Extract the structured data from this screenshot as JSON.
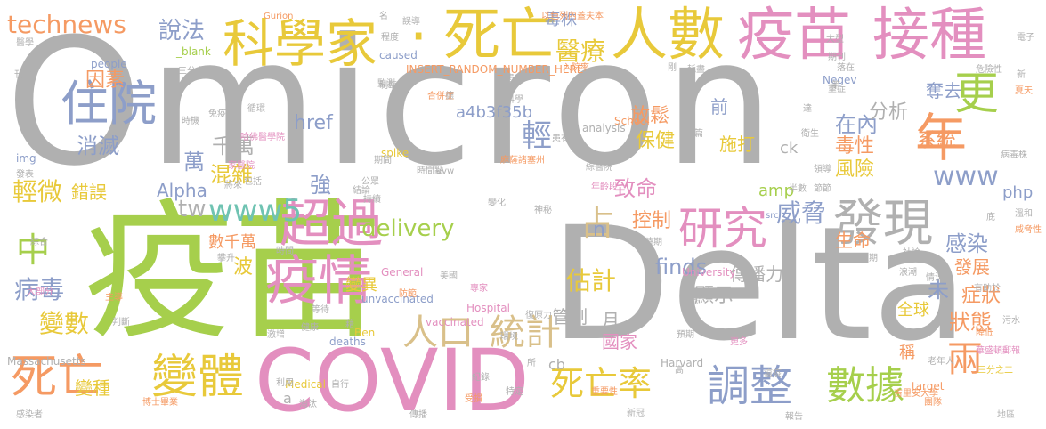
{
  "palette": {
    "gray": "#b0b0b0",
    "green": "#a6cf4c",
    "pink": "#e38fbf",
    "orange": "#f59a63",
    "blue": "#8d9ec9",
    "tan": "#d9c08a",
    "yellow": "#e8c93a",
    "teal": "#6fc3b2"
  },
  "words": [
    {
      "text": "Omicron",
      "color": "gray"
    },
    {
      "text": "疫苗",
      "color": "green"
    },
    {
      "text": "Delta",
      "color": "gray"
    },
    {
      "text": "COVID",
      "color": "pink"
    },
    {
      "text": "疫苗",
      "color": "pink"
    },
    {
      "text": "接種",
      "color": "pink"
    },
    {
      "text": "死亡",
      "color": "yellow"
    },
    {
      "text": "人數",
      "color": "yellow"
    },
    {
      "text": "科學家",
      "color": "yellow"
    },
    {
      "text": "·",
      "color": "yellow"
    },
    {
      "text": "疫情",
      "color": "pink"
    },
    {
      "text": "超過",
      "color": "pink"
    },
    {
      "text": "變體",
      "color": "yellow"
    },
    {
      "text": "死亡",
      "color": "orange"
    },
    {
      "text": "發現",
      "color": "gray"
    },
    {
      "text": "研究",
      "color": "pink"
    },
    {
      "text": "調整",
      "color": "blue"
    },
    {
      "text": "數據",
      "color": "green"
    },
    {
      "text": "死亡率",
      "color": "yellow"
    },
    {
      "text": "住院",
      "color": "blue"
    },
    {
      "text": "年",
      "color": "orange"
    },
    {
      "text": "更",
      "color": "green"
    },
    {
      "text": "technews",
      "color": "orange"
    },
    {
      "text": "www5",
      "color": "teal"
    },
    {
      "text": "人口",
      "color": "tan"
    },
    {
      "text": "統計",
      "color": "tan"
    },
    {
      "text": "占",
      "color": "tan"
    },
    {
      "text": "兩",
      "color": "orange"
    },
    {
      "text": "中",
      "color": "green"
    },
    {
      "text": "病毒",
      "color": "blue"
    },
    {
      "text": "變數",
      "color": "yellow"
    },
    {
      "text": "www",
      "color": "blue"
    },
    {
      "text": "威脅",
      "color": "blue"
    },
    {
      "text": "說法",
      "color": "blue"
    },
    {
      "text": "醫療",
      "color": "yellow"
    },
    {
      "text": "毒株",
      "color": "blue"
    },
    {
      "text": "輕",
      "color": "blue"
    },
    {
      "text": "因素",
      "color": "orange"
    },
    {
      "text": "消滅",
      "color": "blue"
    },
    {
      "text": "輕微",
      "color": "yellow"
    },
    {
      "text": "錯誤",
      "color": "yellow"
    },
    {
      "text": "千萬",
      "color": "gray"
    },
    {
      "text": "混雜",
      "color": "yellow"
    },
    {
      "text": "萬",
      "color": "blue"
    },
    {
      "text": "強",
      "color": "blue"
    },
    {
      "text": "a4b3f35b",
      "color": "blue"
    },
    {
      "text": "保健",
      "color": "yellow"
    },
    {
      "text": "致命",
      "color": "pink"
    },
    {
      "text": "放鬆",
      "color": "orange"
    },
    {
      "text": "施打",
      "color": "yellow"
    },
    {
      "text": "前",
      "color": "blue"
    },
    {
      "text": "在內",
      "color": "blue"
    },
    {
      "text": "毒性",
      "color": "orange"
    },
    {
      "text": "風險",
      "color": "yellow"
    },
    {
      "text": "分析",
      "color": "gray"
    },
    {
      "text": "系統",
      "color": "orange"
    },
    {
      "text": "奪去",
      "color": "blue"
    },
    {
      "text": "delivery",
      "color": "green"
    },
    {
      "text": "href",
      "color": "blue"
    },
    {
      "text": "tw",
      "color": "gray"
    },
    {
      "text": "Alpha",
      "color": "blue"
    },
    {
      "text": "估計",
      "color": "yellow"
    },
    {
      "text": "finds",
      "color": "blue"
    },
    {
      "text": "控制",
      "color": "orange"
    },
    {
      "text": "管制",
      "color": "gray"
    },
    {
      "text": "國家",
      "color": "pink"
    },
    {
      "text": "月",
      "color": "gray"
    },
    {
      "text": "n",
      "color": "blue"
    },
    {
      "text": "狀態",
      "color": "orange"
    },
    {
      "text": "未",
      "color": "blue"
    },
    {
      "text": "症狀",
      "color": "orange"
    },
    {
      "text": "生命",
      "color": "orange"
    },
    {
      "text": "發展",
      "color": "orange"
    },
    {
      "text": "顯示",
      "color": "gray"
    },
    {
      "text": "傳播力",
      "color": "gray"
    },
    {
      "text": "感染",
      "color": "blue"
    },
    {
      "text": "變種",
      "color": "yellow"
    },
    {
      "text": "變異",
      "color": "yellow"
    },
    {
      "text": "數千萬",
      "color": "orange"
    },
    {
      "text": "波",
      "color": "yellow"
    },
    {
      "text": "全球",
      "color": "yellow"
    },
    {
      "text": "稱",
      "color": "orange"
    },
    {
      "text": "ck",
      "color": "gray"
    },
    {
      "text": "cb",
      "color": "gray"
    },
    {
      "text": "amp",
      "color": "green"
    },
    {
      "text": "php",
      "color": "blue"
    },
    {
      "text": "sre",
      "color": "gray"
    },
    {
      "text": "deaths",
      "color": "blue"
    },
    {
      "text": "unvaccinated",
      "color": "blue"
    },
    {
      "text": "vaccinated",
      "color": "pink"
    },
    {
      "text": "Hospital",
      "color": "pink"
    },
    {
      "text": "Harvard",
      "color": "gray"
    },
    {
      "text": "Medical",
      "color": "yellow"
    },
    {
      "text": "Massachusetts",
      "color": "gray"
    },
    {
      "text": "General",
      "color": "pink"
    },
    {
      "text": "University",
      "color": "pink"
    },
    {
      "text": "School",
      "color": "orange"
    },
    {
      "text": "analysis",
      "color": "gray"
    },
    {
      "text": "spike",
      "color": "yellow"
    },
    {
      "text": "Gurion",
      "color": "orange"
    },
    {
      "text": "INSERT_RANDOM_NUMBER_HERE",
      "color": "orange"
    },
    {
      "text": "people",
      "color": "blue"
    },
    {
      "text": "_blank",
      "color": "green"
    },
    {
      "text": "caused",
      "color": "blue"
    },
    {
      "text": "Negev",
      "color": "blue"
    },
    {
      "text": "target",
      "color": "orange"
    },
    {
      "text": "img",
      "color": "blue"
    },
    {
      "text": "src",
      "color": "blue"
    },
    {
      "text": "Ben",
      "color": "yellow"
    },
    {
      "text": "a",
      "color": "gray"
    },
    {
      "text": "avw",
      "color": "gray"
    },
    {
      "text": "以色列內蓋夫本",
      "color": "orange"
    },
    {
      "text": "名",
      "color": "gray"
    },
    {
      "text": "落在",
      "color": "gray"
    },
    {
      "text": "電子",
      "color": "gray"
    },
    {
      "text": "醫學",
      "color": "gray"
    },
    {
      "text": "程度",
      "color": "gray"
    },
    {
      "text": "監測",
      "color": "gray"
    },
    {
      "text": "誤導",
      "color": "gray"
    },
    {
      "text": "入院率",
      "color": "orange"
    },
    {
      "text": "三分之一",
      "color": "gray"
    },
    {
      "text": "刊登",
      "color": "gray"
    },
    {
      "text": "官方",
      "color": "gray"
    },
    {
      "text": "制臨計",
      "color": "gray"
    },
    {
      "text": "合併症",
      "color": "orange"
    },
    {
      "text": "患者",
      "color": "gray"
    },
    {
      "text": "耗盡",
      "color": "gray"
    },
    {
      "text": "期刊",
      "color": "gray"
    },
    {
      "text": "危險性",
      "color": "gray"
    },
    {
      "text": "新",
      "color": "gray"
    },
    {
      "text": "夏天",
      "color": "orange"
    },
    {
      "text": "重症",
      "color": "gray"
    },
    {
      "text": "哈佛醫學院",
      "color": "pink"
    },
    {
      "text": "麻薩諸塞州",
      "color": "orange"
    },
    {
      "text": "綜醫院",
      "color": "gray"
    },
    {
      "text": "時間點",
      "color": "gray"
    },
    {
      "text": "年齡段",
      "color": "pink"
    },
    {
      "text": "歲",
      "color": "gray"
    },
    {
      "text": "家醫院",
      "color": "pink"
    },
    {
      "text": "發表",
      "color": "gray"
    },
    {
      "text": "病毒株",
      "color": "gray"
    },
    {
      "text": "溫和",
      "color": "gray"
    },
    {
      "text": "威脅性",
      "color": "orange"
    },
    {
      "text": "有助於",
      "color": "gray"
    },
    {
      "text": "污水",
      "color": "gray"
    },
    {
      "text": "大部分",
      "color": "pink"
    },
    {
      "text": "主導",
      "color": "orange"
    },
    {
      "text": "判斷",
      "color": "gray"
    },
    {
      "text": "利用",
      "color": "gray"
    },
    {
      "text": "淘汰",
      "color": "gray"
    },
    {
      "text": "自行",
      "color": "gray"
    },
    {
      "text": "紀錄",
      "color": "gray"
    },
    {
      "text": "受損",
      "color": "orange"
    },
    {
      "text": "特定",
      "color": "gray"
    },
    {
      "text": "重要性",
      "color": "orange"
    },
    {
      "text": "高",
      "color": "gray"
    },
    {
      "text": "吉里安大學",
      "color": "orange"
    },
    {
      "text": "老年人",
      "color": "gray"
    },
    {
      "text": "降低",
      "color": "orange"
    },
    {
      "text": "華盛頓郵報",
      "color": "pink"
    },
    {
      "text": "團隊",
      "color": "orange"
    },
    {
      "text": "更多",
      "color": "pink"
    },
    {
      "text": "預期",
      "color": "gray"
    },
    {
      "text": "環境",
      "color": "gray"
    },
    {
      "text": "等待",
      "color": "gray"
    },
    {
      "text": "健康",
      "color": "gray"
    },
    {
      "text": "激增",
      "color": "gray"
    },
    {
      "text": "時間",
      "color": "gray"
    },
    {
      "text": "近期",
      "color": "gray"
    },
    {
      "text": "時期",
      "color": "gray"
    },
    {
      "text": "社論",
      "color": "gray"
    },
    {
      "text": "情況",
      "color": "gray"
    },
    {
      "text": "浪潮",
      "color": "gray"
    },
    {
      "text": "狀況",
      "color": "gray"
    },
    {
      "text": "專家",
      "color": "pink"
    },
    {
      "text": "防範",
      "color": "orange"
    },
    {
      "text": "美國",
      "color": "gray"
    },
    {
      "text": "綜合",
      "color": "gray"
    },
    {
      "text": "復原力",
      "color": "gray"
    },
    {
      "text": "德",
      "color": "gray"
    },
    {
      "text": "科學",
      "color": "gray"
    },
    {
      "text": "變化",
      "color": "gray"
    },
    {
      "text": "神秘",
      "color": "gray"
    },
    {
      "text": "半數",
      "color": "gray"
    },
    {
      "text": "領導",
      "color": "gray"
    },
    {
      "text": "節節",
      "color": "gray"
    },
    {
      "text": "免疫",
      "color": "gray"
    },
    {
      "text": "循環",
      "color": "gray"
    },
    {
      "text": "時機",
      "color": "gray"
    },
    {
      "text": "公眾",
      "color": "gray"
    },
    {
      "text": "期間",
      "color": "gray"
    },
    {
      "text": "持續",
      "color": "gray"
    },
    {
      "text": "將來",
      "color": "gray"
    },
    {
      "text": "包括",
      "color": "gray"
    },
    {
      "text": "結論",
      "color": "gray"
    },
    {
      "text": "攀升",
      "color": "gray"
    },
    {
      "text": "達",
      "color": "gray"
    },
    {
      "text": "篇",
      "color": "gray"
    },
    {
      "text": "患有",
      "color": "gray"
    },
    {
      "text": "剛",
      "color": "gray"
    },
    {
      "text": "日",
      "color": "gray"
    },
    {
      "text": "大型",
      "color": "gray"
    },
    {
      "text": "衛生",
      "color": "gray"
    },
    {
      "text": "底",
      "color": "gray"
    },
    {
      "text": "所",
      "color": "gray"
    },
    {
      "text": "瘟疫",
      "color": "gray"
    },
    {
      "text": "藉",
      "color": "gray"
    },
    {
      "text": "第",
      "color": "gray"
    },
    {
      "text": "三分之二",
      "color": "yellow"
    },
    {
      "text": "博士畢業",
      "color": "orange"
    },
    {
      "text": "傳播",
      "color": "gray"
    },
    {
      "text": "新冠",
      "color": "gray"
    },
    {
      "text": "報告",
      "color": "gray"
    },
    {
      "text": "地區",
      "color": "gray"
    },
    {
      "text": "感染者",
      "color": "gray"
    },
    {
      "text": "例子",
      "color": "gray"
    },
    {
      "text": "疾病",
      "color": "gray"
    },
    {
      "text": "傷害",
      "color": "gray"
    }
  ]
}
